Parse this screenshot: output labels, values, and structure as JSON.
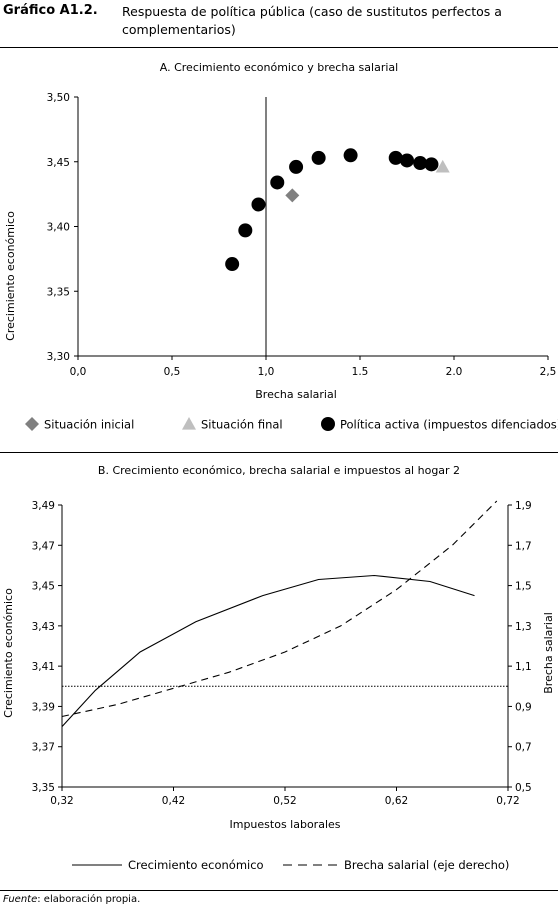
{
  "header": {
    "figure_label": "Gráfico A1.2.",
    "figure_title": "Respuesta de política pública (caso de sustitutos perfectos a complementarios)"
  },
  "source": {
    "label": "Fuente",
    "text": ": elaboración propia."
  },
  "chart_data": [
    {
      "type": "scatter",
      "title": "A. Crecimiento económico y brecha salarial",
      "xlabel": "Brecha salarial",
      "ylabel": "Crecimiento económico",
      "xlim": [
        0,
        2.5
      ],
      "ylim": [
        3.3,
        3.5
      ],
      "xticks": [
        "0,0",
        "0,5",
        "1,0",
        "1.5",
        "2.0",
        "2,5"
      ],
      "yticks": [
        "3,30",
        "3,35",
        "3,40",
        "3,45",
        "3,50"
      ],
      "vline": 1.0,
      "legend_position": "bottom",
      "series": [
        {
          "name": "Situación inicial",
          "marker": "diamond",
          "color": "#808080",
          "x": [
            1.14
          ],
          "y": [
            3.424
          ]
        },
        {
          "name": "Situación final",
          "marker": "triangle",
          "color": "#bfbfbf",
          "x": [
            1.94
          ],
          "y": [
            3.446
          ]
        },
        {
          "name": "Política activa (impuestos difenciados)",
          "marker": "circle",
          "color": "#000000",
          "x": [
            0.82,
            0.89,
            0.96,
            1.06,
            1.16,
            1.28,
            1.45,
            1.69,
            1.75,
            1.82,
            1.88
          ],
          "y": [
            3.371,
            3.397,
            3.417,
            3.434,
            3.446,
            3.453,
            3.455,
            3.453,
            3.451,
            3.449,
            3.448
          ]
        }
      ]
    },
    {
      "type": "line",
      "title": "B. Crecimiento económico, brecha salarial e impuestos al hogar 2",
      "xlabel": "Impuestos laborales",
      "ylabel": "Crecimiento económico",
      "y2label": "Brecha salarial",
      "xlim": [
        0.32,
        0.72
      ],
      "ylim": [
        3.35,
        3.49
      ],
      "y2lim": [
        0.5,
        1.9
      ],
      "xticks": [
        "0,32",
        "0,42",
        "0,52",
        "0,62",
        "0,72"
      ],
      "yticks": [
        "3,35",
        "3,37",
        "3,39",
        "3,41",
        "3,43",
        "3,45",
        "3,47",
        "3,49"
      ],
      "y2ticks": [
        "0,5",
        "0,7",
        "0,9",
        "1,1",
        "1,3",
        "1,5",
        "1,7",
        "1,9"
      ],
      "hline_y2": 1.0,
      "legend_position": "bottom",
      "series": [
        {
          "name": "Crecimiento económico",
          "axis": "left",
          "style": "solid",
          "x": [
            0.32,
            0.35,
            0.39,
            0.44,
            0.5,
            0.55,
            0.6,
            0.65,
            0.69
          ],
          "y": [
            3.38,
            3.398,
            3.417,
            3.432,
            3.445,
            3.453,
            3.455,
            3.452,
            3.445
          ]
        },
        {
          "name": "Brecha salarial (eje derecho)",
          "axis": "right",
          "style": "dashed",
          "x": [
            0.32,
            0.37,
            0.42,
            0.47,
            0.52,
            0.57,
            0.62,
            0.67,
            0.71
          ],
          "y": [
            0.85,
            0.91,
            0.99,
            1.07,
            1.17,
            1.3,
            1.48,
            1.7,
            1.92
          ]
        }
      ]
    }
  ]
}
